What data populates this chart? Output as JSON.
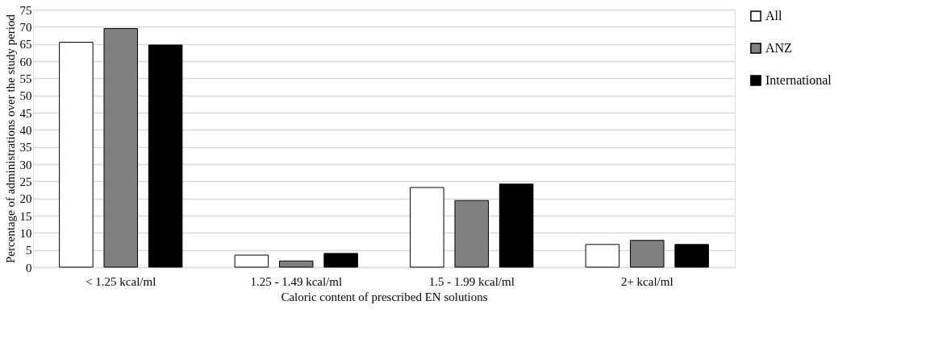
{
  "chart_data": {
    "type": "bar",
    "xlabel": "Caloric content of prescribed EN solutions",
    "ylabel": "Percentage of administrations over the study period",
    "categories": [
      "< 1.25 kcal/ml",
      "1.25 - 1.49 kcal/ml",
      "1.5 - 1.99 kcal/ml",
      "2+ kcal/ml"
    ],
    "series": [
      {
        "name": "All",
        "color": "#ffffff",
        "values": [
          65.5,
          3.5,
          23.2,
          6.6
        ]
      },
      {
        "name": "ANZ",
        "color": "#808080",
        "values": [
          69.5,
          1.8,
          19.4,
          7.8
        ]
      },
      {
        "name": "International",
        "color": "#000000",
        "values": [
          64.7,
          4.0,
          24.2,
          6.6
        ]
      }
    ],
    "ylim": [
      0,
      75
    ],
    "yticks": [
      0,
      5,
      10,
      15,
      20,
      25,
      30,
      35,
      40,
      45,
      50,
      55,
      60,
      65,
      70,
      75
    ],
    "grid": "y",
    "legend": "right"
  }
}
